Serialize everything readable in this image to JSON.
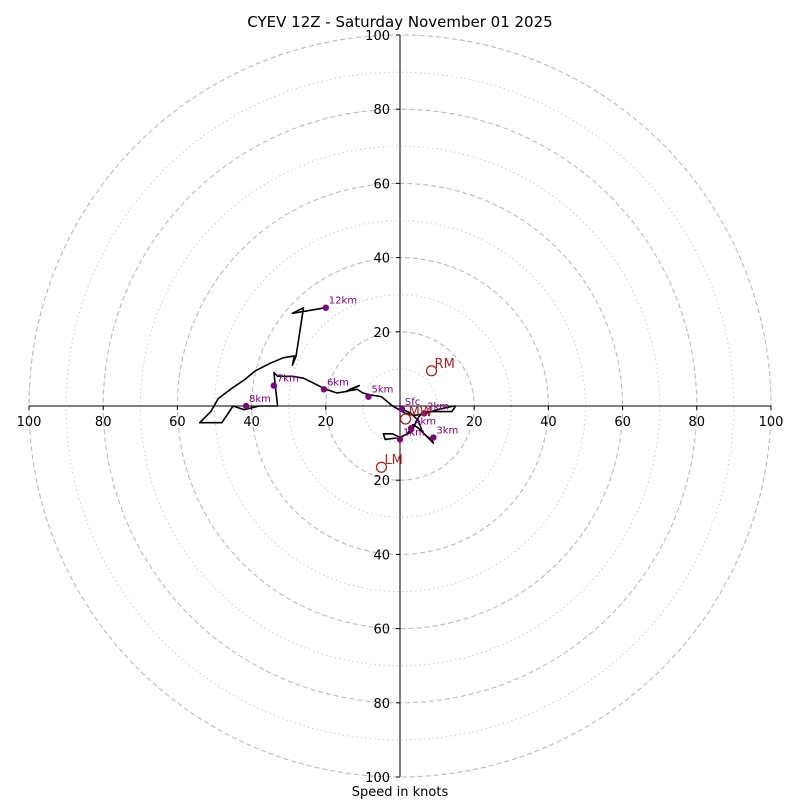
{
  "chart_data": {
    "type": "hodograph",
    "title": "CYEV 12Z - Saturday November 01 2025",
    "xlabel": "Speed in knots",
    "max_speed": 100,
    "ring_dashed_values": [
      20,
      40,
      60,
      80,
      100
    ],
    "ring_dotted_values": [
      10,
      30,
      50,
      70,
      90
    ],
    "x_ticks": [
      {
        "value": -100,
        "label": "100"
      },
      {
        "value": -80,
        "label": "80"
      },
      {
        "value": -60,
        "label": "60"
      },
      {
        "value": -40,
        "label": "40"
      },
      {
        "value": -20,
        "label": "20"
      },
      {
        "value": 20,
        "label": "20"
      },
      {
        "value": 40,
        "label": "40"
      },
      {
        "value": 60,
        "label": "60"
      },
      {
        "value": 80,
        "label": "80"
      },
      {
        "value": 100,
        "label": "100"
      }
    ],
    "y_ticks": [
      {
        "value": 100,
        "label": "100"
      },
      {
        "value": 80,
        "label": "80"
      },
      {
        "value": 60,
        "label": "60"
      },
      {
        "value": 40,
        "label": "40"
      },
      {
        "value": 20,
        "label": "20"
      },
      {
        "value": -20,
        "label": "20"
      },
      {
        "value": -40,
        "label": "40"
      },
      {
        "value": -60,
        "label": "60"
      },
      {
        "value": -80,
        "label": "80"
      },
      {
        "value": -100,
        "label": "100"
      }
    ],
    "trace_color": "#000000",
    "trace": [
      [
        0.5,
        -0.8
      ],
      [
        3,
        -2
      ],
      [
        5,
        -4
      ],
      [
        6,
        -7
      ],
      [
        9,
        -10
      ],
      [
        8.5,
        -9
      ],
      [
        7,
        -8
      ],
      [
        5,
        -6
      ],
      [
        3.5,
        -5
      ],
      [
        2,
        -7.5
      ],
      [
        0,
        -8.5
      ],
      [
        -4,
        -9
      ],
      [
        -4.5,
        -7.5
      ],
      [
        -2,
        -7.5
      ],
      [
        0,
        -8.5
      ],
      [
        3,
        -7
      ],
      [
        5,
        -3
      ],
      [
        6.5,
        -1.5
      ],
      [
        10,
        -1.5
      ],
      [
        13,
        -1.5
      ],
      [
        14,
        -1.5
      ],
      [
        15,
        0
      ],
      [
        14.5,
        0
      ],
      [
        10,
        -1
      ],
      [
        7,
        -2
      ],
      [
        4,
        -2.5
      ],
      [
        1.5,
        -2
      ],
      [
        -2,
        0
      ],
      [
        -5,
        2.5
      ],
      [
        -8,
        3
      ],
      [
        -10,
        3.5
      ],
      [
        -11.5,
        4.5
      ],
      [
        -14.5,
        4
      ],
      [
        -12,
        5
      ],
      [
        -11,
        5.5
      ],
      [
        -13.5,
        4.5
      ],
      [
        -14,
        4
      ],
      [
        -17,
        3.5
      ],
      [
        -20,
        4.5
      ],
      [
        -23,
        6
      ],
      [
        -26,
        7.5
      ],
      [
        -29,
        8
      ],
      [
        -33,
        8
      ],
      [
        -34,
        9
      ],
      [
        -33.5,
        4.5
      ],
      [
        -33,
        0
      ],
      [
        -38,
        0
      ],
      [
        -40,
        -0.5
      ],
      [
        -42,
        -1
      ],
      [
        -45,
        0
      ],
      [
        -47,
        -3
      ],
      [
        -48,
        -4.5
      ],
      [
        -54,
        -4.5
      ],
      [
        -51,
        -1.5
      ],
      [
        -49,
        2
      ],
      [
        -45,
        5
      ],
      [
        -42,
        7
      ],
      [
        -39,
        9.5
      ],
      [
        -35,
        11.5
      ],
      [
        -31.5,
        13
      ],
      [
        -28.5,
        13.5
      ],
      [
        -29,
        11
      ],
      [
        -28,
        13.5
      ],
      [
        -26,
        26.5
      ],
      [
        -29,
        25
      ],
      [
        -20,
        26.5
      ]
    ],
    "height_points_color": "#800080",
    "height_points": [
      {
        "label": "Sfc",
        "u": 0.5,
        "v": -0.8
      },
      {
        "label": "1km",
        "u": 0,
        "v": -9
      },
      {
        "label": "2km",
        "u": 6.5,
        "v": -2
      },
      {
        "label": "3km",
        "u": 9,
        "v": -8.5
      },
      {
        "label": "4km",
        "u": 3,
        "v": -6
      },
      {
        "label": "5km",
        "u": -8.5,
        "v": 2.5
      },
      {
        "label": "6km",
        "u": -20.5,
        "v": 4.5
      },
      {
        "label": "7km",
        "u": -34,
        "v": 5.5
      },
      {
        "label": "8km",
        "u": -41.5,
        "v": 0
      },
      {
        "label": "12km",
        "u": -20,
        "v": 26.5
      }
    ],
    "motion_color": "#b22222",
    "storm_motion": [
      {
        "label": "RM",
        "u": 8.5,
        "v": 9.5
      },
      {
        "label": "LM",
        "u": -5,
        "v": -16.5
      },
      {
        "label": "MW",
        "u": 1.5,
        "v": -3.5
      }
    ]
  }
}
